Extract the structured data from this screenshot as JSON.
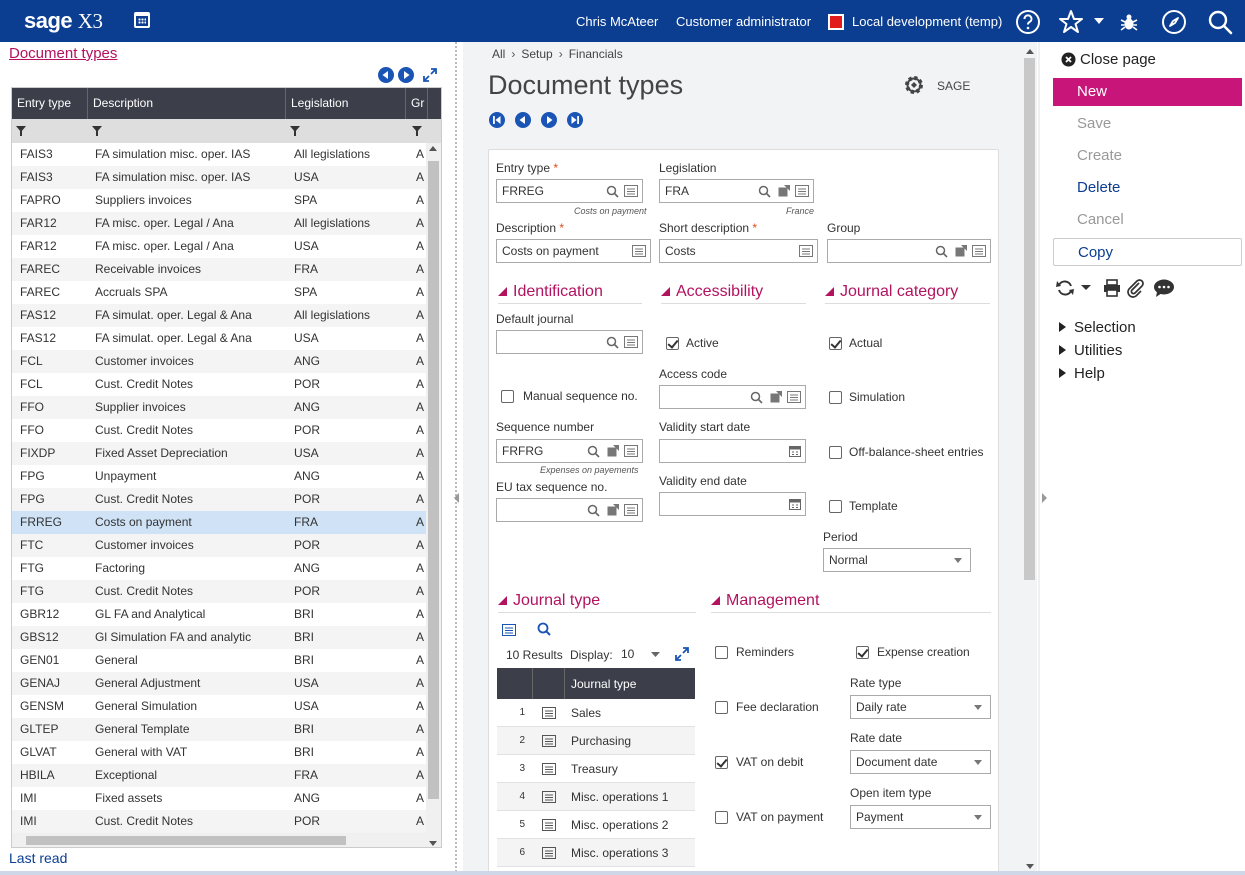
{
  "topbar": {
    "brand": "sage",
    "product": "X3",
    "user": "Chris McAteer",
    "role": "Customer administrator",
    "environment": "Local development (temp)",
    "environment_color": "#e21b1b"
  },
  "left": {
    "title": "Document types",
    "columns": [
      "Entry type",
      "Description",
      "Legislation",
      "Gr"
    ],
    "rows": [
      [
        "FAIS3",
        "FA simulation misc. oper. IAS",
        "All legislations",
        "A"
      ],
      [
        "FAIS3",
        "FA simulation misc. oper. IAS",
        "USA",
        "A"
      ],
      [
        "FAPRO",
        "Suppliers invoices",
        "SPA",
        "A"
      ],
      [
        "FAR12",
        "FA misc. oper. Legal / Ana",
        "All legislations",
        "A"
      ],
      [
        "FAR12",
        "FA misc. oper. Legal / Ana",
        "USA",
        "A"
      ],
      [
        "FAREC",
        "Receivable invoices",
        "FRA",
        "A"
      ],
      [
        "FAREC",
        "Accruals SPA",
        "SPA",
        "A"
      ],
      [
        "FAS12",
        "FA simulat. oper. Legal & Ana",
        "All legislations",
        "A"
      ],
      [
        "FAS12",
        "FA simulat. oper. Legal & Ana",
        "USA",
        "A"
      ],
      [
        "FCL",
        "Customer invoices",
        "ANG",
        "A"
      ],
      [
        "FCL",
        "Cust. Credit Notes",
        "POR",
        "A"
      ],
      [
        "FFO",
        "Supplier invoices",
        "ANG",
        "A"
      ],
      [
        "FFO",
        "Cust. Credit Notes",
        "POR",
        "A"
      ],
      [
        "FIXDP",
        "Fixed Asset Depreciation",
        "USA",
        "A"
      ],
      [
        "FPG",
        "Unpayment",
        "ANG",
        "A"
      ],
      [
        "FPG",
        "Cust. Credit Notes",
        "POR",
        "A"
      ],
      [
        "FRREG",
        "Costs on payment",
        "FRA",
        "A"
      ],
      [
        "FTC",
        "Customer invoices",
        "POR",
        "A"
      ],
      [
        "FTG",
        "Factoring",
        "ANG",
        "A"
      ],
      [
        "FTG",
        "Cust. Credit Notes",
        "POR",
        "A"
      ],
      [
        "GBR12",
        "GL FA and Analytical",
        "BRI",
        "A"
      ],
      [
        "GBS12",
        "Gl Simulation FA and analytic",
        "BRI",
        "A"
      ],
      [
        "GEN01",
        "General",
        "BRI",
        "A"
      ],
      [
        "GENAJ",
        "General Adjustment",
        "USA",
        "A"
      ],
      [
        "GENSM",
        "General Simulation",
        "USA",
        "A"
      ],
      [
        "GLTEP",
        "General Template",
        "BRI",
        "A"
      ],
      [
        "GLVAT",
        "General with VAT",
        "BRI",
        "A"
      ],
      [
        "HBILA",
        "Exceptional",
        "FRA",
        "A"
      ],
      [
        "IMI",
        "Fixed assets",
        "ANG",
        "A"
      ],
      [
        "IMI",
        "Cust. Credit Notes",
        "POR",
        "A"
      ]
    ],
    "selected_index": 16,
    "last_read": "Last read"
  },
  "main": {
    "breadcrumb": [
      "All",
      "Setup",
      "Financials"
    ],
    "title": "Document types",
    "owner": "SAGE",
    "fields": {
      "entry_type_label": "Entry type",
      "entry_type_value": "FRREG",
      "entry_type_note": "Costs on payment",
      "legislation_label": "Legislation",
      "legislation_value": "FRA",
      "legislation_note": "France",
      "description_label": "Description",
      "description_value": "Costs on payment",
      "short_description_label": "Short description",
      "short_description_value": "Costs",
      "group_label": "Group",
      "group_value": ""
    },
    "identification": {
      "title": "Identification",
      "default_journal_label": "Default journal",
      "default_journal_value": "",
      "manual_sequence_label": "Manual sequence no.",
      "manual_sequence_checked": false,
      "sequence_number_label": "Sequence number",
      "sequence_number_value": "FRFRG",
      "sequence_number_note": "Expenses on payements",
      "eu_tax_label": "EU tax sequence no.",
      "eu_tax_value": ""
    },
    "accessibility": {
      "title": "Accessibility",
      "active_label": "Active",
      "active_checked": true,
      "access_code_label": "Access code",
      "access_code_value": "",
      "validity_start_label": "Validity start date",
      "validity_start_value": "",
      "validity_end_label": "Validity end date",
      "validity_end_value": ""
    },
    "journal_category": {
      "title": "Journal category",
      "actual_label": "Actual",
      "actual_checked": true,
      "simulation_label": "Simulation",
      "simulation_checked": false,
      "off_balance_label": "Off-balance-sheet entries",
      "off_balance_checked": false,
      "template_label": "Template",
      "template_checked": false,
      "period_label": "Period",
      "period_value": "Normal"
    },
    "journal_type": {
      "title": "Journal type",
      "results": "10 Results",
      "display_label": "Display:",
      "display_value": "10",
      "column": "Journal type",
      "rows": [
        {
          "n": "1",
          "t": "Sales"
        },
        {
          "n": "2",
          "t": "Purchasing"
        },
        {
          "n": "3",
          "t": "Treasury"
        },
        {
          "n": "4",
          "t": "Misc. operations 1"
        },
        {
          "n": "5",
          "t": "Misc. operations 2"
        },
        {
          "n": "6",
          "t": "Misc. operations 3"
        }
      ]
    },
    "management": {
      "title": "Management",
      "reminders_label": "Reminders",
      "reminders_checked": false,
      "expense_creation_label": "Expense creation",
      "expense_creation_checked": true,
      "fee_declaration_label": "Fee declaration",
      "fee_declaration_checked": false,
      "rate_type_label": "Rate type",
      "rate_type_value": "Daily rate",
      "vat_debit_label": "VAT on debit",
      "vat_debit_checked": true,
      "rate_date_label": "Rate date",
      "rate_date_value": "Document date",
      "vat_payment_label": "VAT on payment",
      "vat_payment_checked": false,
      "open_item_label": "Open item type",
      "open_item_value": "Payment"
    }
  },
  "right": {
    "close_page": "Close page",
    "actions": [
      {
        "label": "New",
        "state": "primary"
      },
      {
        "label": "Save",
        "state": "disabled"
      },
      {
        "label": "Create",
        "state": "disabled"
      },
      {
        "label": "Delete",
        "state": "enabled"
      },
      {
        "label": "Cancel",
        "state": "disabled"
      },
      {
        "label": "Copy",
        "state": "bordered"
      }
    ],
    "menus": [
      "Selection",
      "Utilities",
      "Help"
    ]
  },
  "colors": {
    "topbar": "#0b3d91",
    "accent": "#b3125f",
    "primary_button": "#c8157a",
    "grid_header": "#3c3f4a",
    "selected_row": "#cfe2f6"
  }
}
